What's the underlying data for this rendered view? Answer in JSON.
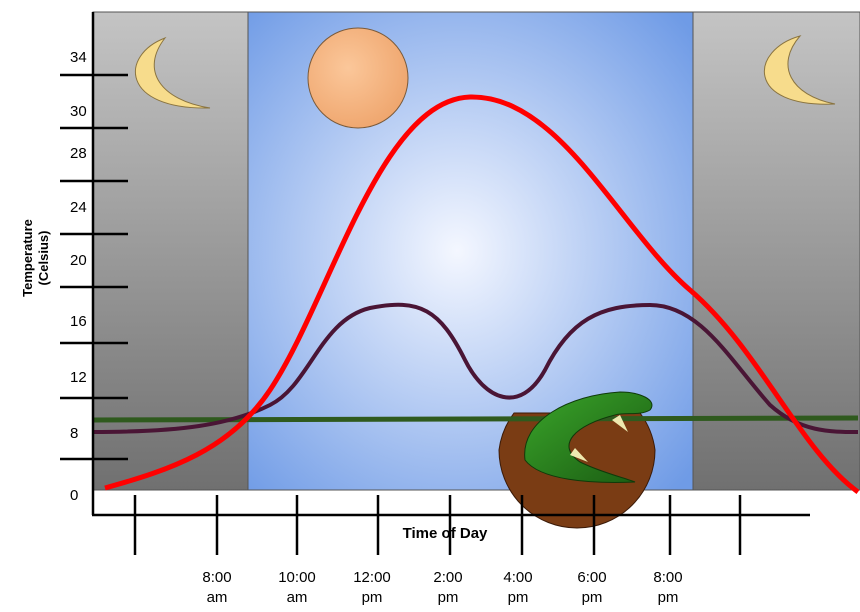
{
  "y_axis": {
    "title_lines": [
      "Temperature",
      "(Celsius)"
    ],
    "ticks": [
      "34",
      "30",
      "28",
      "24",
      "20",
      "16",
      "12",
      "8",
      "0"
    ]
  },
  "x_axis": {
    "title": "Time of Day",
    "ticks": [
      [
        "8:00",
        "am"
      ],
      [
        "10:00",
        "am"
      ],
      [
        "12:00",
        "pm"
      ],
      [
        "2:00",
        "pm"
      ],
      [
        "4:00",
        "pm"
      ],
      [
        "6:00",
        "pm"
      ],
      [
        "8:00",
        "pm"
      ]
    ]
  }
}
